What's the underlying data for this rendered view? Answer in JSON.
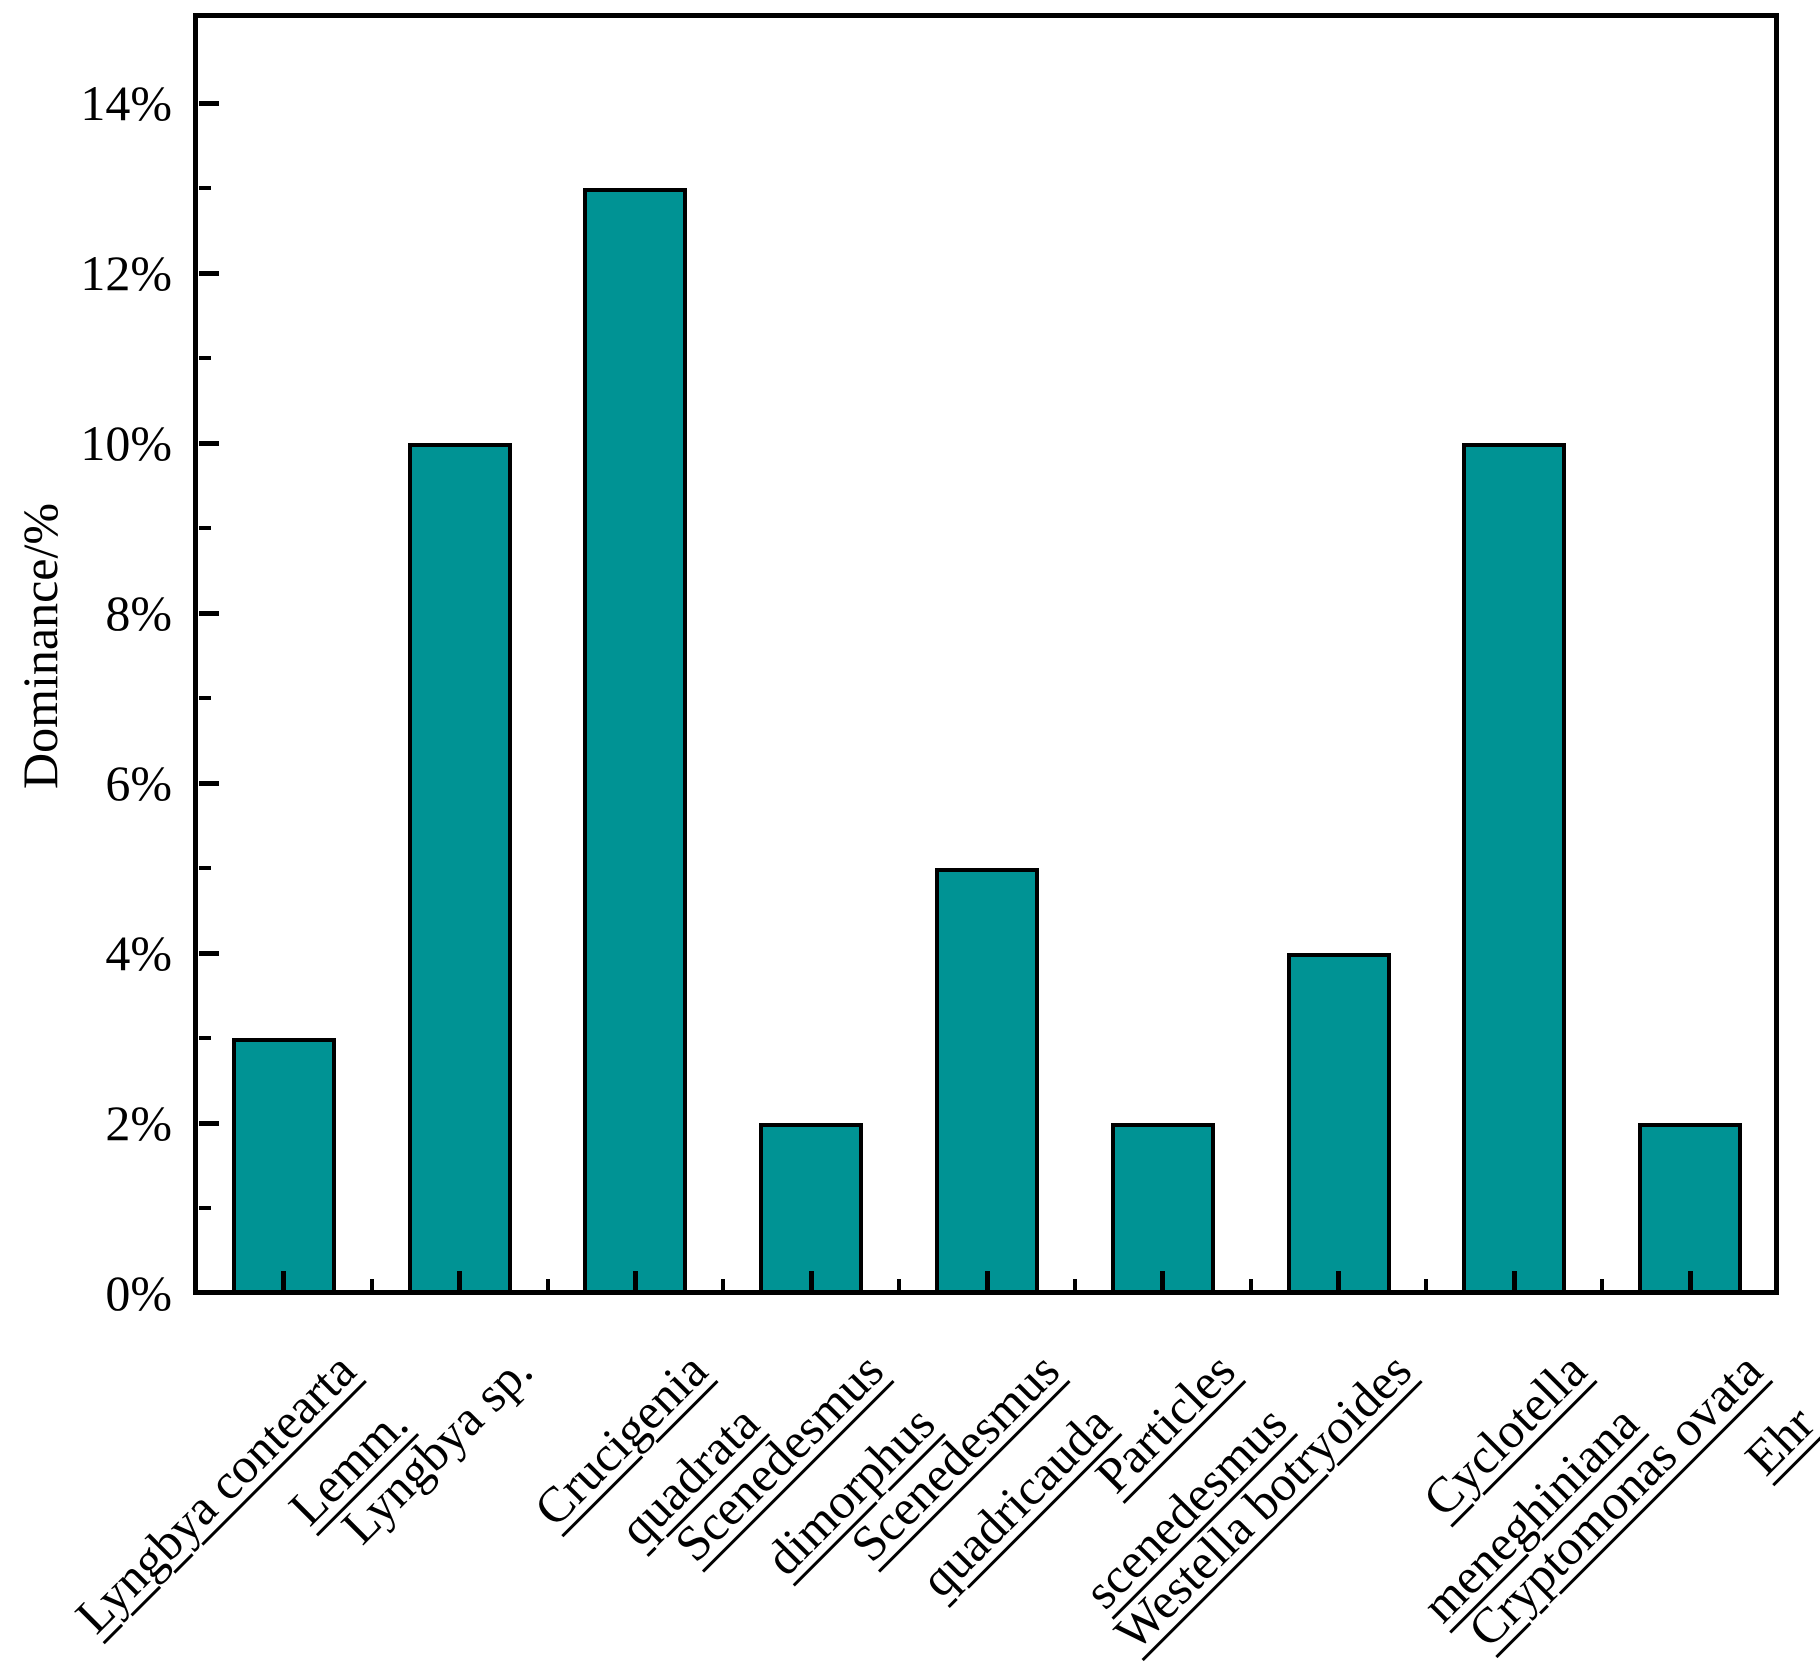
{
  "chart_data": {
    "type": "bar",
    "title": "",
    "ylabel": "Dominance/%",
    "xlabel": "",
    "ylim": [
      0,
      15
    ],
    "yticks_major": [
      0,
      2,
      4,
      6,
      8,
      10,
      12,
      14
    ],
    "ytick_labels": [
      "0%",
      "2%",
      "4%",
      "6%",
      "8%",
      "10%",
      "12%",
      "14%"
    ],
    "yticks_minor": [
      1,
      3,
      5,
      7,
      9,
      11,
      13
    ],
    "grid": false,
    "legend": null,
    "bar_color": "#009394",
    "bar_edge_color": "#000000",
    "axis_color": "#000000",
    "background_color": "#ffffff",
    "categories": [
      "Lyngbya contearta Lemm.",
      "Lyngbya sp.",
      "Crucigenia quadrata",
      "Scenedesmus dimorphus",
      "Scenedesmus quadricauda",
      "Particles scenedesmus",
      "Westella botryoides",
      "Cyclotella meneghiniana",
      "Cryptomonas ovata Ehr"
    ],
    "category_label_lines": [
      [
        {
          "text": "Lyngbya contearta",
          "underline": true
        },
        {
          "text": "Lemm.",
          "underline": true
        }
      ],
      [
        {
          "text": "Lyngbya sp.",
          "underline": false
        }
      ],
      [
        {
          "text": "Crucigenia",
          "underline": true
        },
        {
          "text": "quadrata",
          "underline": true
        }
      ],
      [
        {
          "text": "Scenedesmus",
          "underline": true
        },
        {
          "text": "dimorphus",
          "underline": true
        }
      ],
      [
        {
          "text": "Scenedesmus",
          "underline": true
        },
        {
          "text": "quadricauda",
          "underline": true
        }
      ],
      [
        {
          "text": "Particles",
          "underline": true
        },
        {
          "text": "scenedesmus",
          "underline": true
        }
      ],
      [
        {
          "text": "Westella botryoides",
          "underline": true
        }
      ],
      [
        {
          "text": "Cyclotella",
          "underline": true
        },
        {
          "text": "meneghiniana",
          "underline": true
        }
      ],
      [
        {
          "text": "Cryptomonas ovata",
          "underline": true
        },
        {
          "text": "Ehr",
          "underline": true
        }
      ]
    ],
    "values": [
      3,
      10,
      13,
      2,
      5,
      2,
      4,
      10,
      2
    ],
    "value_unit": "%"
  }
}
